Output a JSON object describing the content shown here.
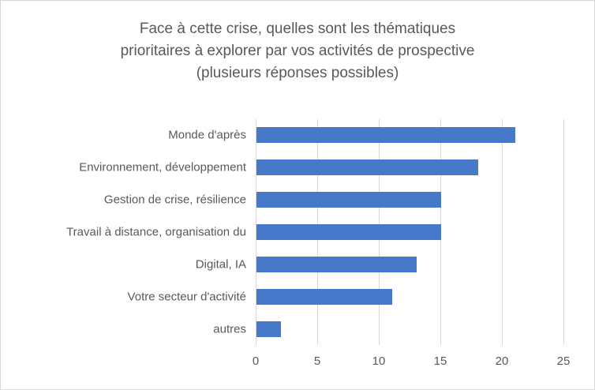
{
  "chart_data": {
    "type": "bar",
    "orientation": "horizontal",
    "title": "Face à cette crise, quelles sont les thématiques prioritaires à explorer par vos activités de prospective (plusieurs réponses possibles)",
    "title_lines": [
      "Face à cette crise, quelles sont les thématiques",
      "prioritaires à explorer par vos activités de prospective",
      "(plusieurs réponses possibles)"
    ],
    "categories": [
      "Monde d'après",
      "Environnement, développement",
      "Gestion de crise, résilience",
      "Travail à distance, organisation du",
      "Digital, IA",
      "Votre secteur d'activité",
      "autres"
    ],
    "values": [
      21,
      18,
      15,
      15,
      13,
      11,
      2
    ],
    "xlabel": "",
    "ylabel": "",
    "xlim": [
      0,
      25
    ],
    "xticks": [
      0,
      5,
      10,
      15,
      20,
      25
    ],
    "grid": true,
    "legend": false,
    "bar_color": "#4778C9",
    "gridline_color": "#D9D9D9",
    "text_color": "#595959",
    "title_color": "#595959",
    "frame_color": "#D6D6D6",
    "background": "#FFFFFF"
  }
}
